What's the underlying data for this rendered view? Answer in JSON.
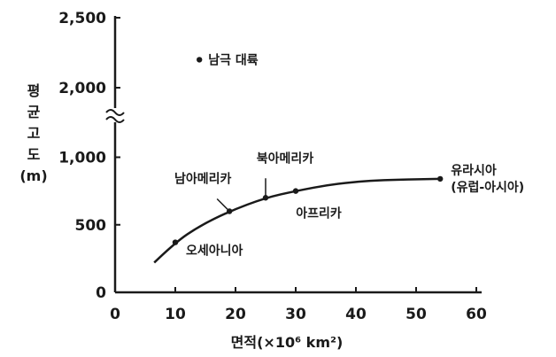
{
  "chart_data": {
    "type": "scatter",
    "xlabel": "면적(×10⁶ km²)",
    "ylabel": "평균고도(m)",
    "x_ticks": [
      0,
      10,
      20,
      30,
      40,
      50,
      60
    ],
    "y_ticks": [
      {
        "value": 0,
        "label": "0"
      },
      {
        "value": 500,
        "label": "500"
      },
      {
        "value": 1000,
        "label": "1,000"
      },
      {
        "value": 2000,
        "label": "2,000"
      },
      {
        "value": 2500,
        "label": "2,500"
      }
    ],
    "xlim": [
      0,
      60
    ],
    "ylim": [
      0,
      2500
    ],
    "y_axis_break": "between 1,000 and 2,000",
    "grid": false,
    "points": [
      {
        "label": "남극 대륙",
        "x": 14,
        "y": 2200
      },
      {
        "label": "오세아니아",
        "x": 10,
        "y": 370
      },
      {
        "label": "남아메리카",
        "x": 19,
        "y": 600
      },
      {
        "label": "북아메리카",
        "x": 25,
        "y": 700
      },
      {
        "label": "아프리카",
        "x": 30,
        "y": 750
      },
      {
        "label": "유라시아\n(유럽-아시아)",
        "x": 54,
        "y": 840
      }
    ],
    "trend_curve": [
      {
        "x": 6.5,
        "y": 220
      },
      {
        "x": 10,
        "y": 370
      },
      {
        "x": 14,
        "y": 490
      },
      {
        "x": 19,
        "y": 600
      },
      {
        "x": 25,
        "y": 700
      },
      {
        "x": 30,
        "y": 750
      },
      {
        "x": 36,
        "y": 800
      },
      {
        "x": 43,
        "y": 830
      },
      {
        "x": 54,
        "y": 840
      }
    ]
  }
}
